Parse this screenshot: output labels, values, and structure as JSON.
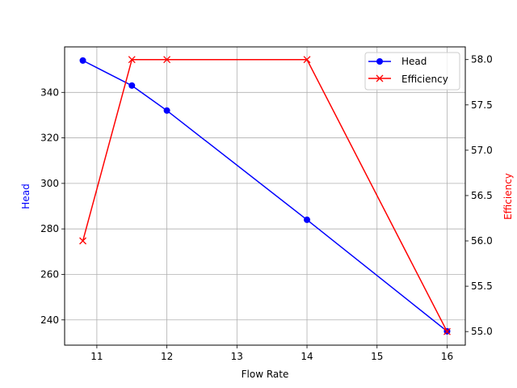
{
  "chart_data": {
    "type": "line",
    "title": "",
    "xlabel": "Flow Rate",
    "ylabel": "Head",
    "y2label": "Efficiency",
    "x": [
      10.8,
      11.5,
      12,
      14,
      16
    ],
    "xlim": [
      10.54,
      16.26
    ],
    "ylim": [
      228.9,
      360.0
    ],
    "y2lim": [
      54.85,
      58.14
    ],
    "grid": true,
    "legend_position": "upper right",
    "x_ticks": [
      11,
      12,
      13,
      14,
      15,
      16
    ],
    "y_ticks": [
      240,
      260,
      280,
      300,
      320,
      340
    ],
    "y2_ticks": [
      "55.0",
      "55.5",
      "56.0",
      "56.5",
      "57.0",
      "57.5",
      "58.0"
    ],
    "series": [
      {
        "name": "Head",
        "axis": "left",
        "color": "#0000ff",
        "marker": "circle",
        "values": [
          354,
          343,
          332,
          284,
          235
        ]
      },
      {
        "name": "Efficiency",
        "axis": "right",
        "color": "#ff0000",
        "marker": "x",
        "values": [
          56.0,
          58.0,
          58.0,
          58.0,
          55.0
        ]
      }
    ]
  },
  "labels": {
    "xlabel": "Flow Rate",
    "ylabel": "Head",
    "y2label": "Efficiency",
    "legend_head": "Head",
    "legend_efficiency": "Efficiency"
  }
}
